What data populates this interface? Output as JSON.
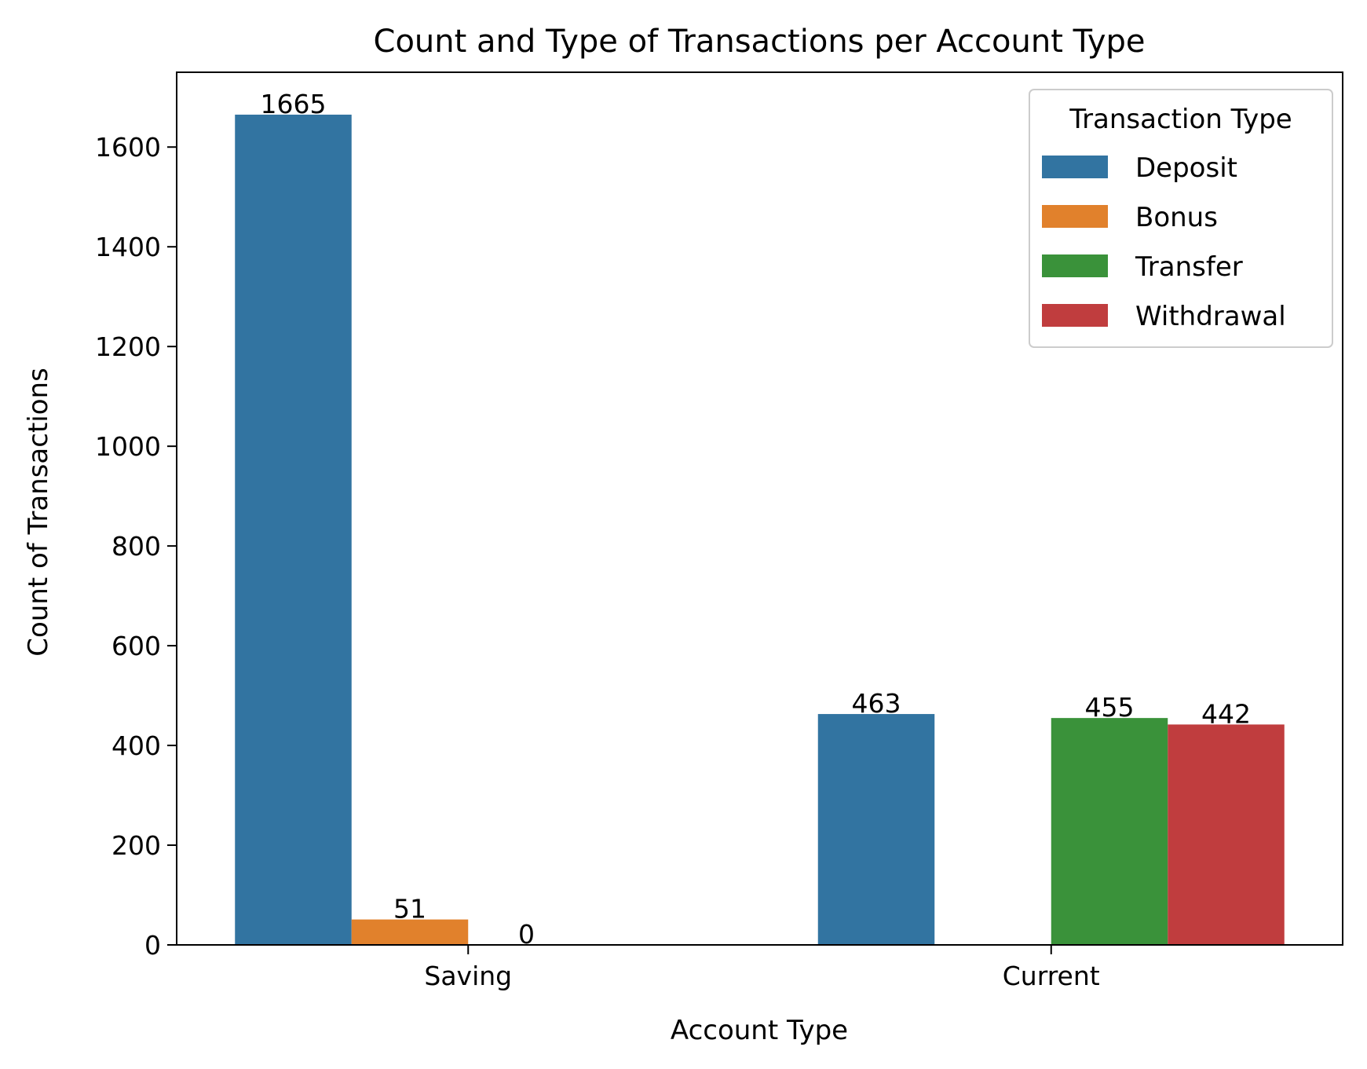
{
  "chart_data": {
    "type": "bar",
    "title": "Count and Type of Transactions per Account Type",
    "xlabel": "Account Type",
    "ylabel": "Count of Transactions",
    "categories": [
      "Saving",
      "Current"
    ],
    "ylim": [
      0,
      1750
    ],
    "yticks": [
      0,
      200,
      400,
      600,
      800,
      1000,
      1200,
      1400,
      1600
    ],
    "ytick_labels": [
      "0",
      "200",
      "400",
      "600",
      "800",
      "1000",
      "1200",
      "1400",
      "1600"
    ],
    "grid": false,
    "legend": {
      "title": "Transaction Type",
      "placement": "top-right"
    },
    "series": [
      {
        "name": "Deposit",
        "color": "#3274a1",
        "values": [
          1665,
          463
        ],
        "labels": [
          "1665",
          "463"
        ]
      },
      {
        "name": "Bonus",
        "color": "#e1812c",
        "values": [
          51,
          null
        ],
        "labels": [
          "51",
          ""
        ]
      },
      {
        "name": "Transfer",
        "color": "#3a923a",
        "values": [
          0,
          455
        ],
        "labels": [
          "0",
          "455"
        ]
      },
      {
        "name": "Withdrawal",
        "color": "#c03d3e",
        "values": [
          null,
          442
        ],
        "labels": [
          "",
          "442"
        ]
      }
    ]
  }
}
